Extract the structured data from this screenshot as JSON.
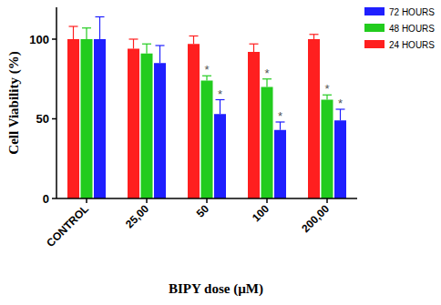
{
  "chart_data": {
    "type": "bar",
    "x_label": "BIPY dose (µM)",
    "y_label": "Cell Viability (%)",
    "categories": [
      "CONTROL",
      "25,00",
      "50",
      "100",
      "200,00"
    ],
    "series": [
      {
        "name": "24 HOURS",
        "color": "#ff1f1f",
        "values": [
          100,
          94,
          97,
          92,
          100
        ],
        "errors": [
          8,
          6,
          5,
          5,
          3
        ],
        "annotations": [
          null,
          null,
          null,
          null,
          null
        ]
      },
      {
        "name": "48 HOURS",
        "color": "#22cc1e",
        "values": [
          100,
          91,
          74,
          70,
          62
        ],
        "errors": [
          7,
          6,
          3,
          5,
          3
        ],
        "annotations": [
          null,
          null,
          "*",
          "*",
          "*"
        ]
      },
      {
        "name": "72 HOURS",
        "color": "#1f1fff",
        "values": [
          100,
          85,
          53,
          43,
          49
        ],
        "errors": [
          14,
          11,
          9,
          5,
          7
        ],
        "annotations": [
          null,
          null,
          "*",
          "*",
          "*"
        ]
      }
    ],
    "ylim": [
      0,
      120
    ],
    "yticks": [
      0,
      50,
      100
    ],
    "grid": false,
    "legend": "top-right"
  }
}
